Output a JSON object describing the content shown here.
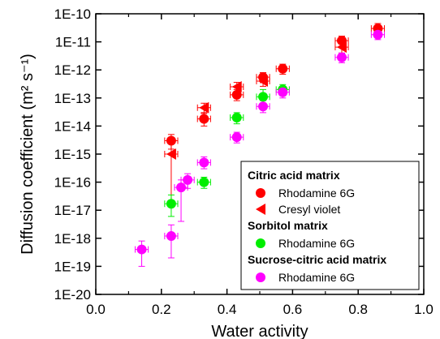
{
  "chart_data": {
    "type": "scatter",
    "title": "",
    "xlabel": "Water activity",
    "ylabel": "Diffusion coefficient (m² s⁻¹)",
    "xlim": [
      0.0,
      1.0
    ],
    "x_ticks": [
      "0.0",
      "0.2",
      "0.4",
      "0.6",
      "0.8",
      "1.0"
    ],
    "x_tick_values": [
      0.0,
      0.2,
      0.4,
      0.6,
      0.8,
      1.0
    ],
    "y_scale": "log",
    "ylim": [
      1e-20,
      3e-10
    ],
    "y_ticks": [
      "1E-10",
      "1E-11",
      "1E-12",
      "1E-13",
      "1E-14",
      "1E-15",
      "1E-16",
      "1E-17",
      "1E-18",
      "1E-19",
      "1E-20"
    ],
    "y_tick_exponents": [
      -10,
      -11,
      -12,
      -13,
      -14,
      -15,
      -16,
      -17,
      -18,
      -19,
      -20
    ],
    "grid": false,
    "legend_placement": "bottom-right",
    "legend": [
      {
        "group": "Citric acid matrix",
        "entries": [
          {
            "series": 0,
            "label": "Rhodamine 6G"
          },
          {
            "series": 1,
            "label": "Cresyl violet"
          }
        ]
      },
      {
        "group": "Sorbitol matrix",
        "entries": [
          {
            "series": 2,
            "label": "Rhodamine 6G"
          }
        ]
      },
      {
        "group": "Sucrose-citric acid matrix",
        "entries": [
          {
            "series": 3,
            "label": "Rhodamine 6G"
          }
        ]
      }
    ],
    "series": [
      {
        "marker": "circle",
        "color": "#ff0000",
        "points": [
          {
            "x": 0.23,
            "y": 3e-15,
            "xerr": 0.02,
            "ylo": 1.5e-15,
            "yhi": 5e-15
          },
          {
            "x": 0.33,
            "y": 1.8e-14,
            "xerr": 0.02,
            "ylo": 1e-14,
            "yhi": 3e-14
          },
          {
            "x": 0.43,
            "y": 1.3e-13,
            "xerr": 0.02,
            "ylo": 8e-14,
            "yhi": 2e-13
          },
          {
            "x": 0.51,
            "y": 5.5e-13,
            "xerr": 0.02,
            "ylo": 3.5e-13,
            "yhi": 8e-13
          },
          {
            "x": 0.57,
            "y": 1.1e-12,
            "xerr": 0.02,
            "ylo": 7e-13,
            "yhi": 1.6e-12
          },
          {
            "x": 0.75,
            "y": 1.1e-11,
            "xerr": 0.02,
            "ylo": 7e-12,
            "yhi": 1.6e-11
          },
          {
            "x": 0.86,
            "y": 3e-11,
            "xerr": 0.02,
            "ylo": 2e-11,
            "yhi": 4.5e-11
          }
        ]
      },
      {
        "marker": "triangle-left",
        "color": "#ff0000",
        "points": [
          {
            "x": 0.23,
            "y": 1e-15,
            "xerr": 0.02,
            "ylo": 2e-17,
            "yhi": 3e-15
          },
          {
            "x": 0.33,
            "y": 4.5e-14,
            "xerr": 0.02,
            "ylo": 2.8e-14,
            "yhi": 6.5e-14
          },
          {
            "x": 0.43,
            "y": 2.5e-13,
            "xerr": 0.02,
            "ylo": 1.6e-13,
            "yhi": 3.6e-13
          },
          {
            "x": 0.51,
            "y": 4e-13,
            "xerr": 0.02,
            "ylo": 2.6e-13,
            "yhi": 6e-13
          },
          {
            "x": 0.75,
            "y": 6.5e-12,
            "xerr": 0.02,
            "ylo": 4e-12,
            "yhi": 1e-11
          }
        ]
      },
      {
        "marker": "circle",
        "color": "#00ee00",
        "points": [
          {
            "x": 0.23,
            "y": 1.7e-17,
            "xerr": 0.02,
            "ylo": 6e-18,
            "yhi": 3.5e-17
          },
          {
            "x": 0.33,
            "y": 1e-16,
            "xerr": 0.02,
            "ylo": 6e-17,
            "yhi": 1.5e-16
          },
          {
            "x": 0.43,
            "y": 2e-14,
            "xerr": 0.02,
            "ylo": 1.2e-14,
            "yhi": 3e-14
          },
          {
            "x": 0.51,
            "y": 1.1e-13,
            "xerr": 0.02,
            "ylo": 6e-14,
            "yhi": 2e-13
          },
          {
            "x": 0.57,
            "y": 2e-13,
            "xerr": 0.02,
            "ylo": 1.2e-13,
            "yhi": 3e-13
          }
        ]
      },
      {
        "marker": "circle",
        "color": "#ff00ff",
        "points": [
          {
            "x": 0.14,
            "y": 4e-19,
            "xerr": 0.02,
            "ylo": 1e-19,
            "yhi": 8e-19
          },
          {
            "x": 0.23,
            "y": 1.2e-18,
            "xerr": 0.02,
            "ylo": 2e-19,
            "yhi": 3e-18
          },
          {
            "x": 0.26,
            "y": 6.5e-17,
            "xerr": 0.02,
            "ylo": 4e-18,
            "yhi": 1.2e-16
          },
          {
            "x": 0.28,
            "y": 1.2e-16,
            "xerr": 0.02,
            "ylo": 6e-17,
            "yhi": 2e-16
          },
          {
            "x": 0.33,
            "y": 5e-16,
            "xerr": 0.02,
            "ylo": 3e-16,
            "yhi": 8e-16
          },
          {
            "x": 0.43,
            "y": 4e-15,
            "xerr": 0.02,
            "ylo": 2.5e-15,
            "yhi": 6e-15
          },
          {
            "x": 0.51,
            "y": 5e-14,
            "xerr": 0.02,
            "ylo": 3e-14,
            "yhi": 8e-14
          },
          {
            "x": 0.57,
            "y": 1.6e-13,
            "xerr": 0.02,
            "ylo": 1e-13,
            "yhi": 2.5e-13
          },
          {
            "x": 0.75,
            "y": 2.8e-12,
            "xerr": 0.02,
            "ylo": 1.8e-12,
            "yhi": 4e-12
          },
          {
            "x": 0.86,
            "y": 1.8e-11,
            "xerr": 0.02,
            "ylo": 1.2e-11,
            "yhi": 2.6e-11
          }
        ]
      }
    ]
  }
}
